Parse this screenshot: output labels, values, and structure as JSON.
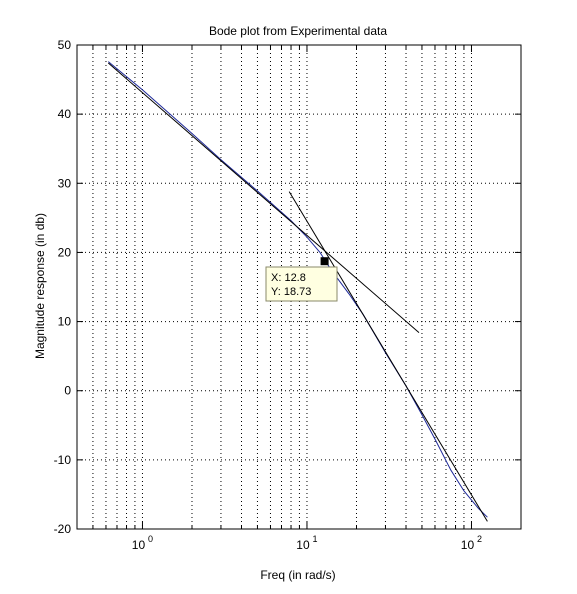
{
  "chart_data": {
    "type": "line",
    "title": "Bode plot from Experimental data",
    "xlabel": "Freq (in rad/s)",
    "ylabel": "Magnitude response (in db)",
    "xscale": "log",
    "xlim": [
      0.4,
      200
    ],
    "ylim": [
      -20,
      50
    ],
    "grid": true,
    "x_tick_labels": [
      {
        "value": 1,
        "base": "10",
        "exp": "0"
      },
      {
        "value": 10,
        "base": "10",
        "exp": "1"
      },
      {
        "value": 100,
        "base": "10",
        "exp": "2"
      }
    ],
    "y_ticks": [
      -20,
      -10,
      0,
      10,
      20,
      30,
      40,
      50
    ],
    "y_tick_labels": [
      "-20",
      "-10",
      "0",
      "10",
      "20",
      "30",
      "40",
      "50"
    ],
    "series": [
      {
        "color": "#1f2a9a",
        "points": [
          [
            0.62,
            47.6
          ],
          [
            1.0,
            43.5
          ],
          [
            2.0,
            37.2
          ],
          [
            3.0,
            33.4
          ],
          [
            5.0,
            28.9
          ],
          [
            8.0,
            24.6
          ],
          [
            10.0,
            22.2
          ],
          [
            12.0,
            20.0
          ],
          [
            14.0,
            17.5
          ],
          [
            18.0,
            14.0
          ],
          [
            22.0,
            11.0
          ],
          [
            30.0,
            5.5
          ],
          [
            40.0,
            0.7
          ],
          [
            50.0,
            -3.5
          ],
          [
            60.0,
            -7.0
          ],
          [
            75.0,
            -11.5
          ],
          [
            90.0,
            -14.5
          ],
          [
            110.0,
            -17.0
          ],
          [
            125.0,
            -18.3
          ]
        ]
      },
      {
        "color": "#000000",
        "points": [
          [
            0.62,
            47.4
          ],
          [
            48.0,
            8.4
          ]
        ]
      },
      {
        "color": "#000000",
        "points": [
          [
            7.8,
            28.8
          ],
          [
            125.0,
            -18.9
          ]
        ]
      }
    ],
    "datatip": {
      "point": [
        12.8,
        18.73
      ],
      "x_line": "X: 12.8",
      "y_line": "Y: 18.73"
    }
  }
}
